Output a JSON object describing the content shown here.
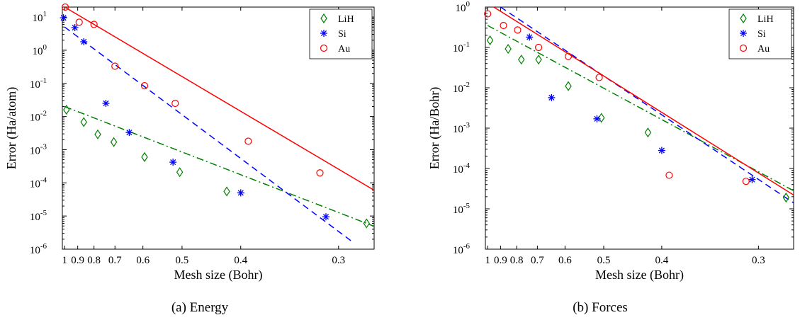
{
  "chart_data": [
    {
      "type": "scatter",
      "caption": "(a) Energy",
      "xlabel": "Mesh size (Bohr)",
      "ylabel": "Error (Ha/atom)",
      "xscale": "reciprocal",
      "yscale": "log",
      "xlim": [
        1.02,
        0.275
      ],
      "ylim": [
        1e-06,
        20
      ],
      "xticks": [
        1,
        0.9,
        0.8,
        0.7,
        0.6,
        0.5,
        0.4,
        0.3
      ],
      "yticks": [
        {
          "value": 1e-06,
          "base": "10",
          "exp": "-6"
        },
        {
          "value": 1e-05,
          "base": "10",
          "exp": "-5"
        },
        {
          "value": 0.0001,
          "base": "10",
          "exp": "-4"
        },
        {
          "value": 0.001,
          "base": "10",
          "exp": "-3"
        },
        {
          "value": 0.01,
          "base": "10",
          "exp": "-2"
        },
        {
          "value": 0.1,
          "base": "10",
          "exp": "-1"
        },
        {
          "value": 1,
          "base": "10",
          "exp": "0"
        },
        {
          "value": 10,
          "base": "10",
          "exp": "1"
        }
      ],
      "legend_position": "top-right",
      "series": [
        {
          "name": "LiH",
          "color": "#008000",
          "marker": "diamond",
          "line": "dash-dot",
          "x": [
            0.985,
            0.86,
            0.78,
            0.705,
            0.595,
            0.505,
            0.42,
            0.28
          ],
          "y": [
            0.016,
            0.0068,
            0.0029,
            0.0017,
            0.0006,
            0.00021,
            5.5e-05,
            6e-06
          ],
          "fit_x": [
            1.0,
            0.275
          ],
          "fit_y": [
            0.02,
            4.9e-06
          ]
        },
        {
          "name": "Si",
          "color": "#0000ff",
          "marker": "asterisk",
          "line": "dashed",
          "x": [
            1.01,
            0.92,
            0.86,
            0.74,
            0.645,
            0.52,
            0.4,
            0.31
          ],
          "y": [
            9.5,
            4.8,
            1.8,
            0.025,
            0.0033,
            0.00042,
            5e-05,
            9.5e-06
          ],
          "fit_x": [
            1.0,
            0.29
          ],
          "fit_y": [
            5.0,
            1.7e-06
          ]
        },
        {
          "name": "Au",
          "color": "#ff0000",
          "marker": "circle",
          "line": "solid",
          "x": [
            0.995,
            0.89,
            0.8,
            0.7,
            0.595,
            0.515,
            0.39,
            0.315
          ],
          "y": [
            20,
            7,
            6,
            0.33,
            0.085,
            0.025,
            0.0018,
            0.0002
          ],
          "fit_x": [
            1.0,
            0.275
          ],
          "fit_y": [
            20,
            6e-05
          ]
        }
      ]
    },
    {
      "type": "scatter",
      "caption": "(b) Forces",
      "xlabel": "Mesh size (Bohr)",
      "ylabel": "Error (Ha/Bohr)",
      "xscale": "reciprocal",
      "yscale": "log",
      "xlim": [
        1.02,
        0.275
      ],
      "ylim": [
        1e-06,
        1
      ],
      "xticks": [
        1,
        0.9,
        0.8,
        0.7,
        0.6,
        0.5,
        0.4,
        0.3
      ],
      "yticks": [
        {
          "value": 1e-06,
          "base": "10",
          "exp": "-6"
        },
        {
          "value": 1e-05,
          "base": "10",
          "exp": "-5"
        },
        {
          "value": 0.0001,
          "base": "10",
          "exp": "-4"
        },
        {
          "value": 0.001,
          "base": "10",
          "exp": "-3"
        },
        {
          "value": 0.01,
          "base": "10",
          "exp": "-2"
        },
        {
          "value": 0.1,
          "base": "10",
          "exp": "-1"
        },
        {
          "value": 1,
          "base": "10",
          "exp": "0"
        }
      ],
      "legend_position": "top-right",
      "series": [
        {
          "name": "LiH",
          "color": "#008000",
          "marker": "diamond",
          "line": "dash-dot",
          "x": [
            0.98,
            0.85,
            0.775,
            0.695,
            0.59,
            0.505,
            0.42,
            0.28
          ],
          "y": [
            0.15,
            0.092,
            0.05,
            0.05,
            0.011,
            0.0018,
            0.00078,
            1.9e-05
          ],
          "fit_x": [
            1.0,
            0.275
          ],
          "fit_y": [
            0.35,
            2.8e-05
          ]
        },
        {
          "name": "Si",
          "color": "#0000ff",
          "marker": "asterisk",
          "line": "dashed",
          "x": [
            0.735,
            0.645,
            0.515,
            0.4,
            0.305
          ],
          "y": [
            0.18,
            0.0057,
            0.0017,
            0.00028,
            5.3e-05
          ],
          "fit_x": [
            0.9,
            0.275
          ],
          "fit_y": [
            1.0,
            1.4e-05
          ]
        },
        {
          "name": "Au",
          "color": "#ff0000",
          "marker": "circle",
          "line": "solid",
          "x": [
            1.0,
            0.88,
            0.795,
            0.695,
            0.59,
            0.51,
            0.39,
            0.31
          ],
          "y": [
            0.68,
            0.35,
            0.27,
            0.1,
            0.06,
            0.018,
            6.8e-05,
            4.8e-05
          ],
          "fit_x": [
            0.95,
            0.275
          ],
          "fit_y": [
            1.0,
            2.2e-05
          ]
        }
      ]
    }
  ]
}
